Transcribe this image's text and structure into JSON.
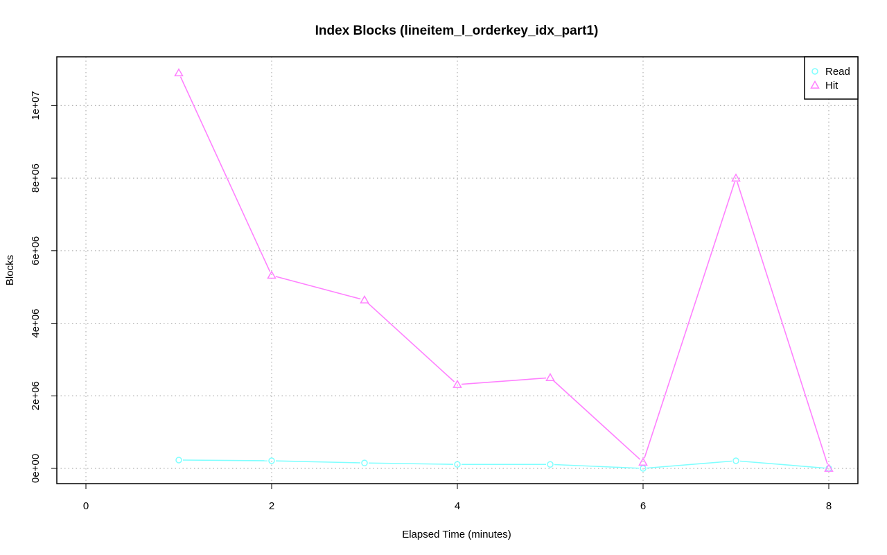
{
  "chart_data": {
    "type": "line",
    "title": "Index Blocks (lineitem_l_orderkey_idx_part1)",
    "xlabel": "Elapsed Time (minutes)",
    "ylabel": "Blocks",
    "xlim": [
      0,
      8
    ],
    "ylim": [
      0,
      11000000
    ],
    "x_ticks": [
      0,
      2,
      4,
      6,
      8
    ],
    "x_tick_labels": [
      "0",
      "2",
      "4",
      "6",
      "8"
    ],
    "y_ticks": [
      0,
      2000000,
      4000000,
      6000000,
      8000000,
      10000000
    ],
    "y_tick_labels": [
      "0e+00",
      "2e+06",
      "4e+06",
      "6e+06",
      "8e+06",
      "1e+07"
    ],
    "grid": true,
    "legend_position": "top-right",
    "x": [
      1,
      2,
      3,
      4,
      5,
      6,
      7,
      8
    ],
    "series": [
      {
        "name": "Read",
        "color": "#80ffff",
        "marker": "circle",
        "values": [
          230000,
          210000,
          150000,
          110000,
          110000,
          0,
          210000,
          0
        ]
      },
      {
        "name": "Hit",
        "color": "#ff80ff",
        "marker": "triangle",
        "values": [
          10900000,
          5320000,
          4640000,
          2310000,
          2500000,
          170000,
          8000000,
          0
        ]
      }
    ]
  }
}
